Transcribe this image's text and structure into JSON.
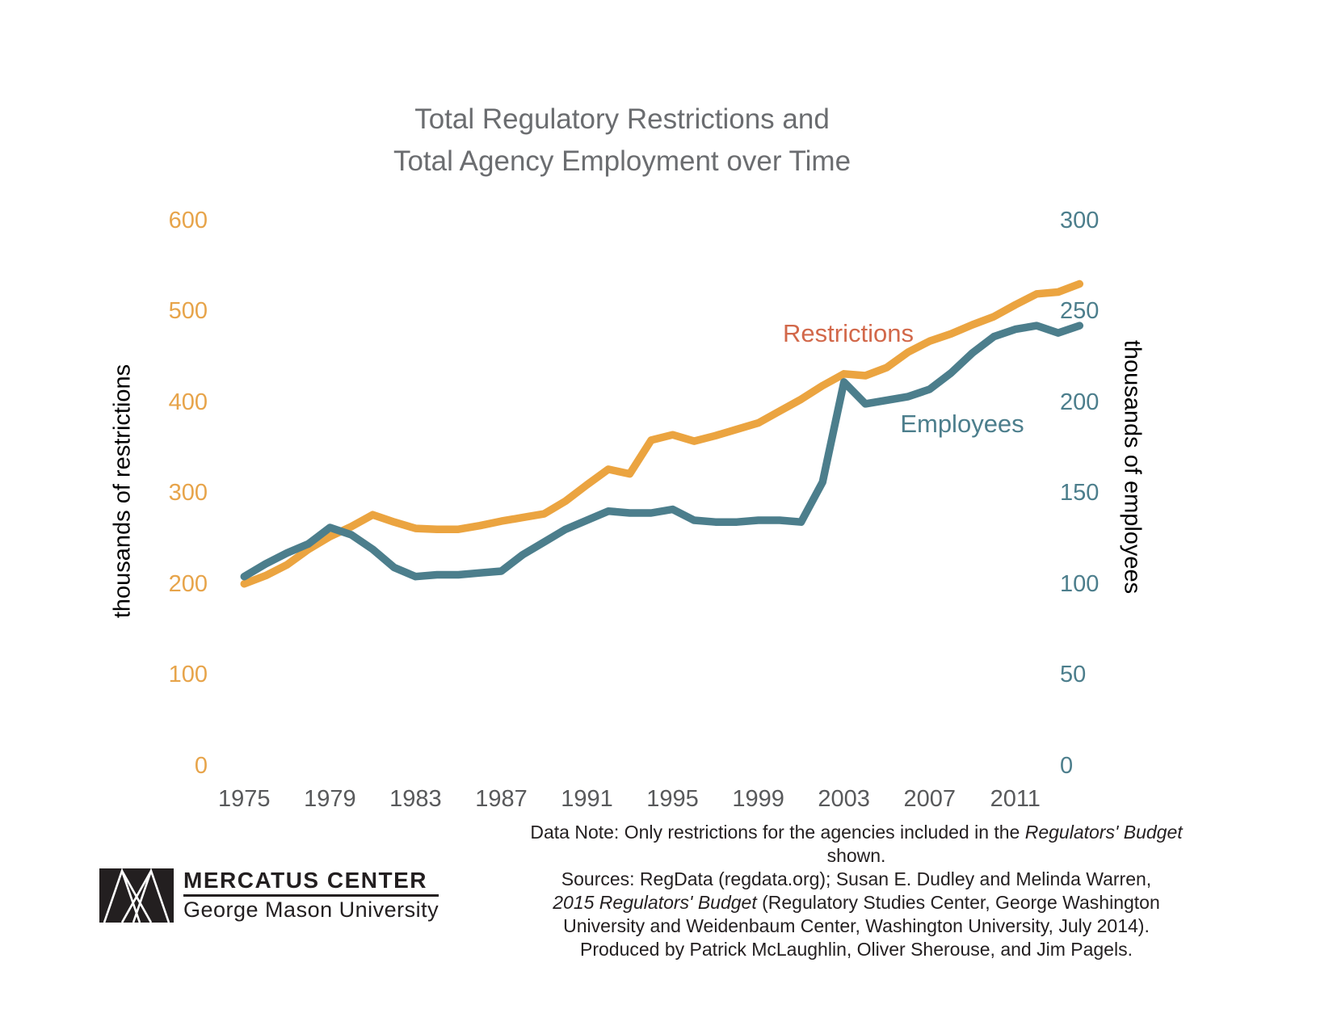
{
  "title": {
    "line1": "Total Regulatory Restrictions and",
    "line2": "Total Agency Employment over Time",
    "color": "#6b6d70"
  },
  "chart_data": {
    "type": "line",
    "title": "Total Regulatory Restrictions and Total Agency Employment over Time",
    "grid": false,
    "legend_position": "inline-labels-on-chart",
    "x": [
      1975,
      1976,
      1977,
      1978,
      1979,
      1980,
      1981,
      1982,
      1983,
      1984,
      1985,
      1986,
      1987,
      1988,
      1989,
      1990,
      1991,
      1992,
      1993,
      1994,
      1995,
      1996,
      1997,
      1998,
      1999,
      2000,
      2001,
      2002,
      2003,
      2004,
      2005,
      2006,
      2007,
      2008,
      2009,
      2010,
      2011,
      2012,
      2013,
      2014
    ],
    "x_tick_labels": [
      "1975",
      "1979",
      "1983",
      "1987",
      "1991",
      "1995",
      "1999",
      "2003",
      "2007",
      "2011"
    ],
    "left_axis": {
      "title": "thousands of restrictions",
      "range": [
        0,
        600
      ],
      "ticks": [
        600,
        500,
        400,
        300,
        200,
        100,
        0
      ],
      "color": "#e7a44a"
    },
    "right_axis": {
      "title": "thousands of employees",
      "range": [
        0,
        300
      ],
      "ticks": [
        300,
        250,
        200,
        150,
        100,
        50,
        0
      ],
      "color": "#4c7e8c"
    },
    "series": [
      {
        "name": "Restrictions",
        "axis": "left",
        "color": "#eba440",
        "label_color": "#d2684a",
        "values": [
          200,
          209,
          221,
          238,
          252,
          263,
          276,
          268,
          261,
          260,
          260,
          264,
          269,
          273,
          277,
          291,
          309,
          326,
          321,
          358,
          364,
          357,
          363,
          370,
          377,
          390,
          403,
          418,
          431,
          429,
          438,
          455,
          467,
          475,
          485,
          494,
          507,
          519,
          521,
          530
        ]
      },
      {
        "name": "Employees",
        "axis": "right",
        "color": "#4c7e8c",
        "label_color": "#4c7e8c",
        "values": [
          104,
          111,
          117,
          122,
          131,
          127,
          119,
          109,
          104,
          105,
          105,
          106,
          107,
          116,
          123,
          130,
          135,
          140,
          139,
          139,
          141,
          135,
          134,
          134,
          135,
          135,
          134,
          156,
          211,
          199,
          201,
          203,
          207,
          216,
          227,
          236,
          240,
          242,
          238,
          242
        ]
      }
    ]
  },
  "footer": {
    "logo": {
      "mark": "mercatus-triangles-mark",
      "line1": "MERCATUS CENTER",
      "line2": "George Mason University"
    },
    "note_lines": [
      [
        {
          "t": "Data Note: Only restrictions for the agencies included in the ",
          "i": false
        },
        {
          "t": "Regulators' Budget",
          "i": true
        },
        {
          "t": " shown.",
          "i": false
        }
      ],
      [
        {
          "t": "Sources: RegData (regdata.org); Susan E. Dudley and Melinda Warren,",
          "i": false
        }
      ],
      [
        {
          "t": "2015 Regulators' Budget",
          "i": true
        },
        {
          "t": " (Regulatory Studies Center, George Washington",
          "i": false
        }
      ],
      [
        {
          "t": "University and Weidenbaum Center, Washington University, July 2014).",
          "i": false
        }
      ],
      [
        {
          "t": "Produced by Patrick McLaughlin, Oliver Sherouse, and Jim Pagels.",
          "i": false
        }
      ]
    ]
  }
}
